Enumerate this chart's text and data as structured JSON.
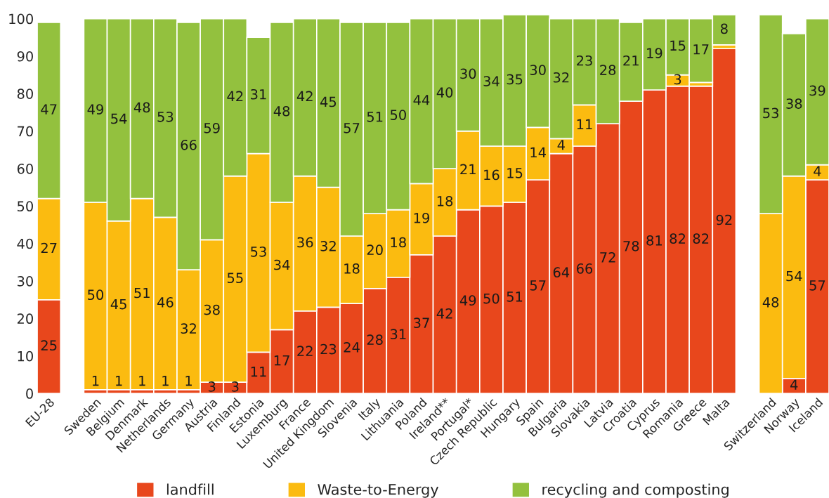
{
  "chart_data": {
    "type": "bar",
    "stacked": true,
    "categories": [
      "EU-28",
      null,
      "Sweden",
      "Belgium",
      "Denmark",
      "Netherlands",
      "Germany",
      "Austria",
      "Finland",
      "Estonia",
      "Luxemburg",
      "France",
      "United Kingdom",
      "Slovenia",
      "Italy",
      "Lithuania",
      "Poland",
      "Ireland**",
      "Portugal*",
      "Czech Republic",
      "Hungary",
      "Spain",
      "Bulgaria",
      "Slovakia",
      "Latvia",
      "Croatia",
      "Cyprus",
      "Romania",
      "Greece",
      "Malta",
      null,
      "Switzerland",
      "Norway",
      "Iceland"
    ],
    "series": [
      {
        "name": "landfill",
        "color": "#e8471c",
        "values": [
          25,
          null,
          1,
          1,
          1,
          1,
          1,
          3,
          3,
          11,
          17,
          22,
          23,
          24,
          28,
          31,
          37,
          42,
          49,
          50,
          51,
          57,
          64,
          66,
          72,
          78,
          81,
          82,
          82,
          92,
          null,
          null,
          4,
          57
        ],
        "value_labels": [
          "25",
          null,
          "1",
          "1",
          "1",
          "1",
          "1",
          "3",
          "3",
          "11",
          "17",
          "22",
          "23",
          "24",
          "28",
          "31",
          "37",
          "42",
          "49",
          "50",
          "51",
          "57",
          "64",
          "66",
          "72",
          "78",
          "81",
          "82",
          "82",
          "92",
          null,
          null,
          "4",
          "57"
        ]
      },
      {
        "name": "Waste-to-Energy",
        "color": "#fbbb10",
        "values": [
          27,
          null,
          50,
          45,
          51,
          46,
          32,
          38,
          55,
          53,
          34,
          36,
          32,
          18,
          20,
          18,
          19,
          18,
          21,
          16,
          15,
          14,
          4,
          11,
          null,
          null,
          null,
          3,
          1,
          1,
          null,
          48,
          54,
          4
        ],
        "value_labels": [
          "27",
          null,
          "50",
          "45",
          "51",
          "46",
          "32",
          "38",
          "55",
          "53",
          "34",
          "36",
          "32",
          "18",
          "20",
          "18",
          "19",
          "18",
          "21",
          "16",
          "15",
          "14",
          "4",
          "11",
          null,
          null,
          null,
          "3",
          null,
          null,
          null,
          "48",
          "54",
          "4"
        ]
      },
      {
        "name": "recycling and composting",
        "color": "#93c13e",
        "values": [
          47,
          null,
          49,
          54,
          48,
          53,
          66,
          59,
          42,
          31,
          48,
          42,
          45,
          57,
          51,
          50,
          44,
          40,
          30,
          34,
          35,
          30,
          32,
          23,
          28,
          21,
          19,
          15,
          17,
          8,
          null,
          53,
          38,
          39
        ],
        "value_labels": [
          "47",
          null,
          "49",
          "54",
          "48",
          "53",
          "66",
          "59",
          "42",
          "31",
          "48",
          "42",
          "45",
          "57",
          "51",
          "50",
          "44",
          "40",
          "30",
          "34",
          "35",
          "30",
          "32",
          "23",
          "28",
          "21",
          "19",
          "15",
          "17",
          "8",
          null,
          "53",
          "38",
          "39"
        ]
      }
    ],
    "ylim": [
      0,
      101
    ],
    "yticks": [
      0,
      10,
      20,
      30,
      40,
      50,
      60,
      70,
      80,
      90,
      100
    ],
    "grid": false,
    "legend": "bottom"
  }
}
